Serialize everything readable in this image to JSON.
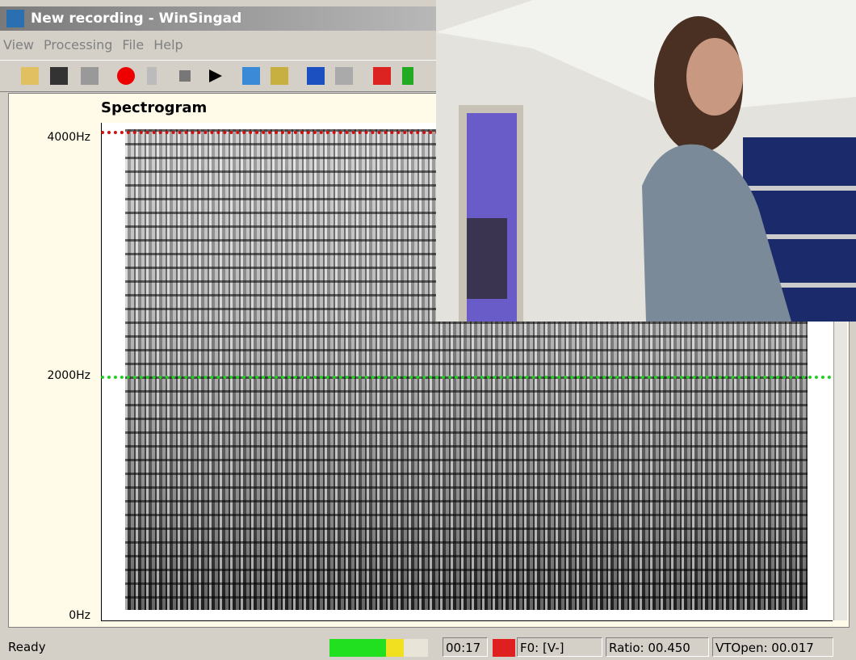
{
  "window": {
    "title": "New recording - WinSingad",
    "menu": [
      "View",
      "Processing",
      "File",
      "Help"
    ]
  },
  "spectrogram": {
    "title": "Spectrogram",
    "y_labels": [
      "4000Hz",
      "2000Hz",
      "0Hz"
    ]
  },
  "status_bar": {
    "status": "Ready",
    "time": "00:17",
    "f0": "F0: [V-]",
    "ratio": "Ratio: 00.450",
    "vt_open": "VTOpen: 00.017"
  }
}
